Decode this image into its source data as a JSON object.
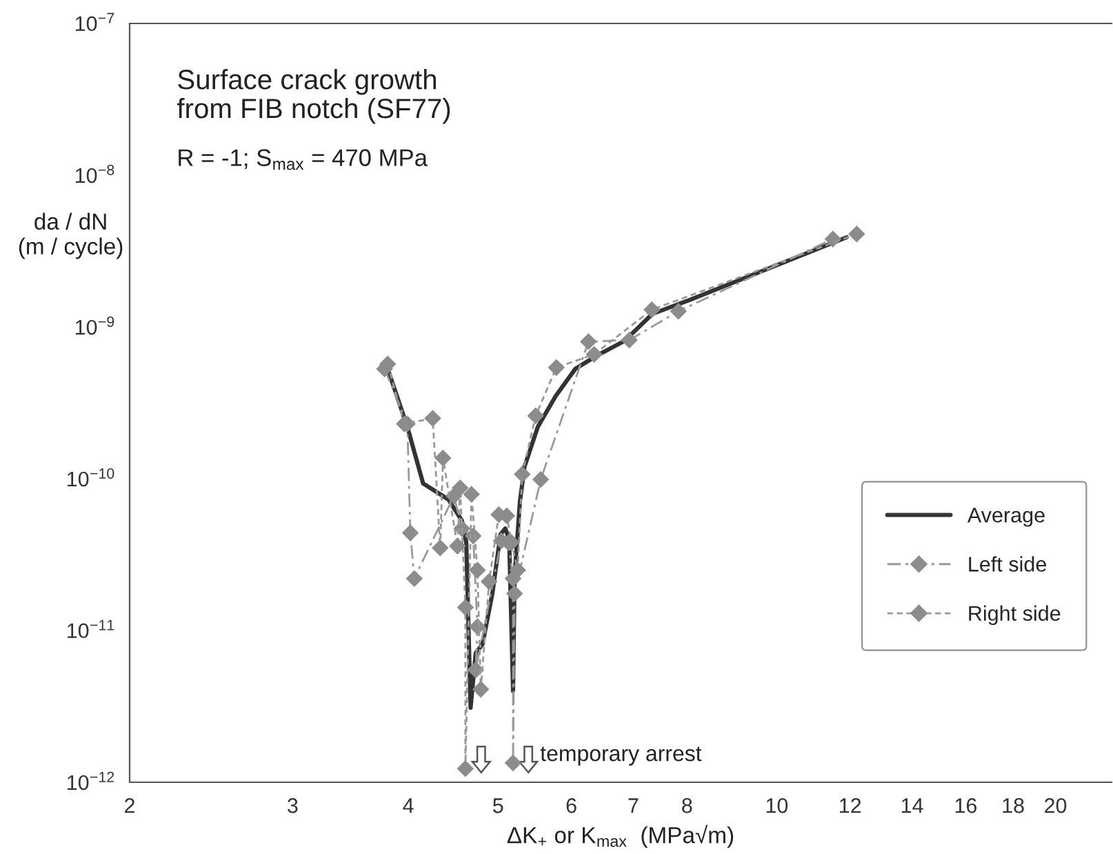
{
  "chart_data": {
    "type": "line",
    "title": "Surface crack growth\nfrom FIB notch (SF77)",
    "subtitle": "R = -1; S$_{max}$ = 470 MPa",
    "xlabel": "ΔK$_{+}$ or K$_{max}$  (MPa√m)",
    "ylabel": "da / dN\n(m / cycle)",
    "log": "xy",
    "xlim": [
      2,
      23
    ],
    "ylim": [
      1e-12,
      1e-07
    ],
    "xticks": [
      2,
      3,
      4,
      5,
      6,
      7,
      8,
      10,
      12,
      14,
      16,
      18,
      20
    ],
    "yticks": [
      {
        "value": 1e-12,
        "label": "10$^{−12}$"
      },
      {
        "value": 1e-11,
        "label": "10$^{−11}$"
      },
      {
        "value": 1e-10,
        "label": "10$^{−10}$"
      },
      {
        "value": 1e-09,
        "label": "10$^{−9}$"
      },
      {
        "value": 1e-08,
        "label": "10$^{−8}$"
      },
      {
        "value": 1e-07,
        "label": "10$^{−7}$"
      }
    ],
    "grid": false,
    "legend": "lower right",
    "annotations": [
      "temporary arrest"
    ],
    "series": [
      {
        "name": "Average",
        "color": "#333333",
        "line_style": "solid",
        "marker": "none",
        "x": [
          3.8,
          3.99,
          4.15,
          4.42,
          4.57,
          4.62,
          4.67,
          4.73,
          4.81,
          4.93,
          5.03,
          5.09,
          5.14,
          5.19,
          5.21,
          5.28,
          5.34,
          5.52,
          5.77,
          6.06,
          6.4,
          6.85,
          7.34,
          8.06,
          11.9
        ],
        "values": [
          5.3e-10,
          2.2e-10,
          9.3e-11,
          7.3e-11,
          5.3e-11,
          3.8e-11,
          3.1e-12,
          7.1e-12,
          8.1e-12,
          1.75e-11,
          4.3e-11,
          4.7e-11,
          4e-11,
          4e-12,
          2.3e-11,
          7.1e-11,
          1.2e-10,
          2.2e-10,
          3.5e-10,
          5.3e-10,
          6.5e-10,
          8.1e-10,
          1.22e-09,
          1.51e-09,
          3.9e-09
        ]
      },
      {
        "name": "Left side",
        "color": "#999999",
        "line_style": "dashdot",
        "marker": "diamond",
        "x": [
          3.77,
          3.99,
          4.02,
          4.06,
          4.48,
          4.57,
          4.7,
          4.75,
          4.73,
          5.04,
          5.13,
          5.19,
          5.19,
          5.21,
          5.56,
          6.26,
          6.93,
          7.83,
          11.5
        ],
        "values": [
          5.3e-10,
          2.3e-10,
          4.4e-11,
          2.2e-11,
          7.7e-11,
          4.7e-11,
          4.2e-11,
          1.06e-11,
          5.5e-12,
          3.9e-11,
          3.8e-11,
          2.2e-11,
          1.34e-12,
          1.75e-11,
          9.9e-11,
          8e-10,
          8.2e-10,
          1.27e-09,
          3.8e-09
        ]
      },
      {
        "name": "Right side",
        "color": "#999999",
        "line_style": "dashed",
        "marker": "diamond",
        "x": [
          3.8,
          3.96,
          4.25,
          4.33,
          4.36,
          4.52,
          4.55,
          4.61,
          4.61,
          4.68,
          4.75,
          4.79,
          4.89,
          5.01,
          5.11,
          5.17,
          5.25,
          5.31,
          5.49,
          5.78,
          6.35,
          7.33,
          12.2
        ],
        "values": [
          5.7e-10,
          2.3e-10,
          2.5e-10,
          3.5e-11,
          1.37e-10,
          3.6e-11,
          8.7e-11,
          1.42e-11,
          1.23e-12,
          7.9e-11,
          2.5e-11,
          4.1e-12,
          2.1e-11,
          5.8e-11,
          5.7e-11,
          3.8e-11,
          2.5e-11,
          1.07e-10,
          2.6e-10,
          5.4e-10,
          6.6e-10,
          1.3e-09,
          4.1e-09
        ]
      }
    ]
  }
}
